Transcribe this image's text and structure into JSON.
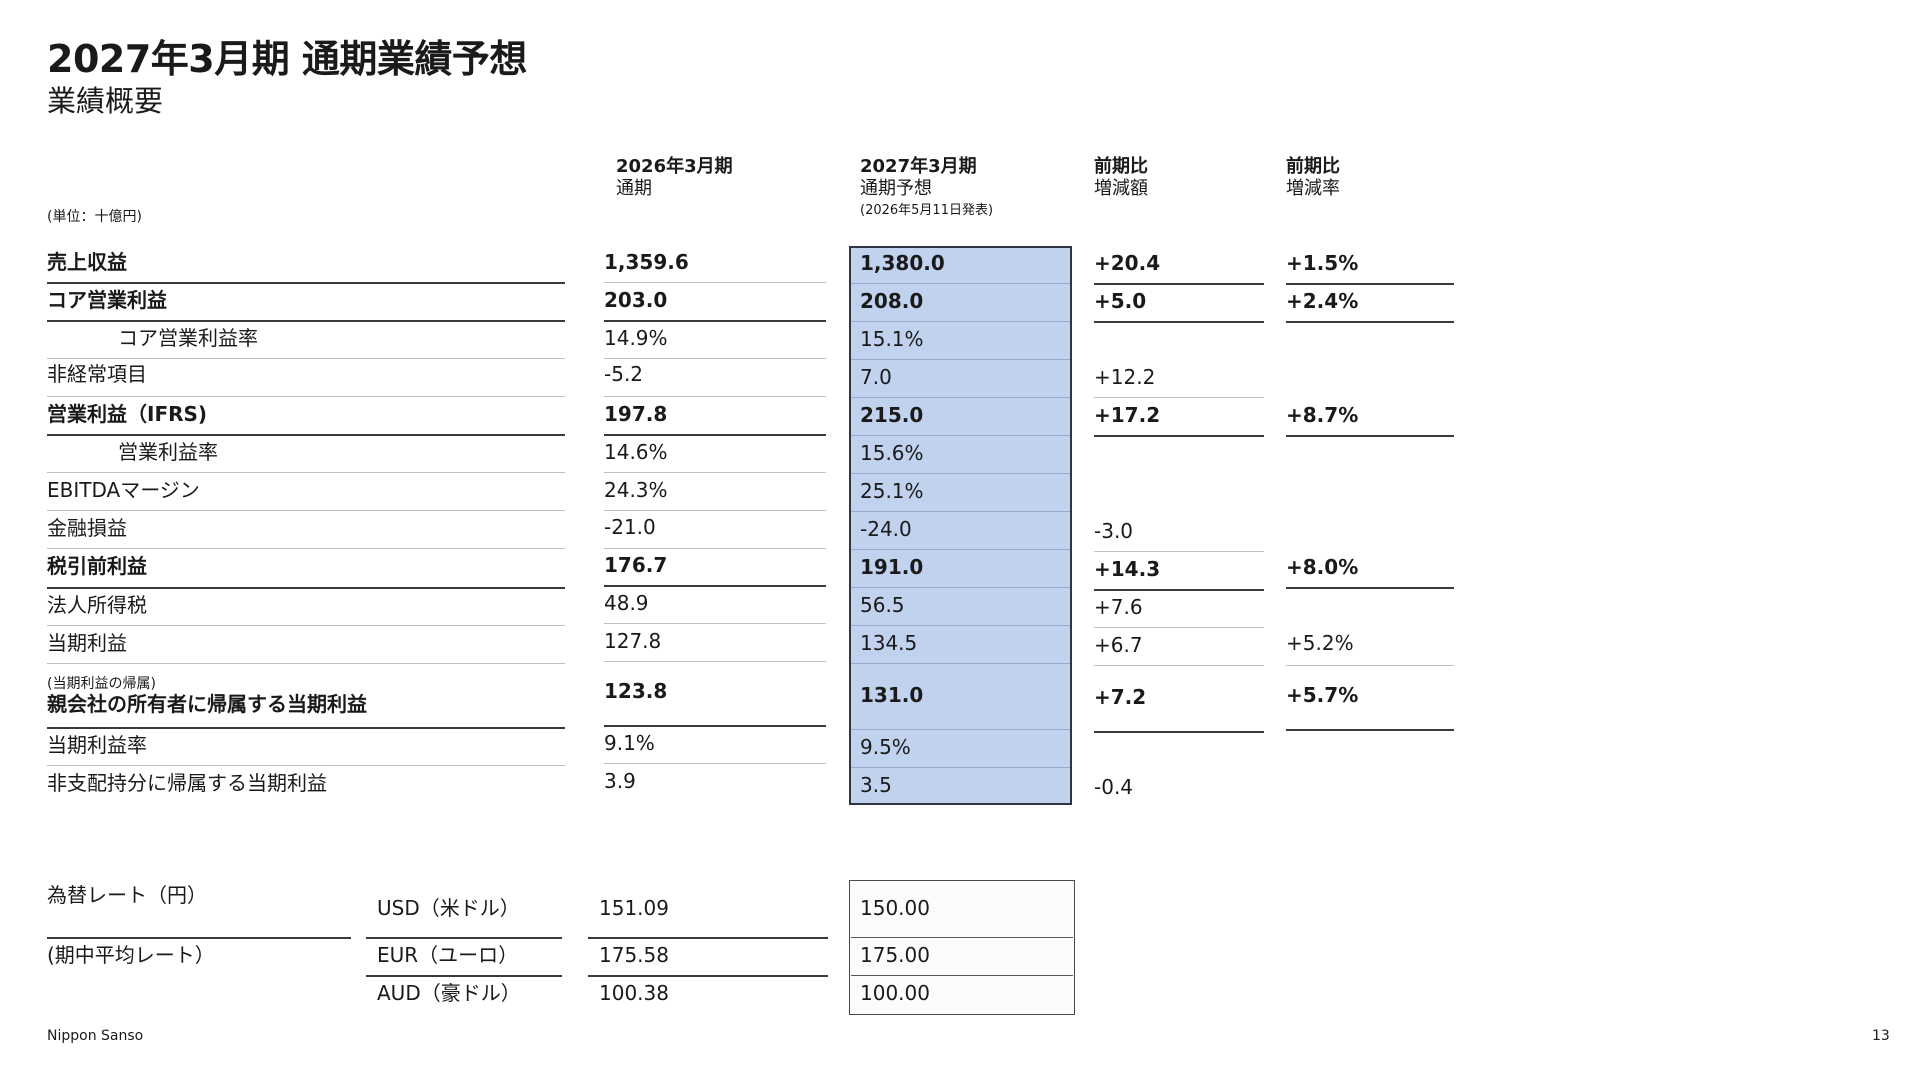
{
  "title": "2027年3月期 通期業績予想",
  "subtitle": "業績概要",
  "unit_note": "(単位：十億円)",
  "columns": {
    "fy2026": {
      "line1": "2026年3月期",
      "line2": "通期"
    },
    "fy2027": {
      "line1": "2027年3月期",
      "line2": "通期予想",
      "note": "(2026年5月11日発表)"
    },
    "diff": {
      "line1": "前期比",
      "line2": "増減額"
    },
    "rate": {
      "line1": "前期比",
      "line2": "増減率"
    }
  },
  "rows": [
    {
      "label": "売上収益",
      "fy2026": "1,359.6",
      "fy2027": "1,380.0",
      "diff": "+20.4",
      "rate": "+1.5%"
    },
    {
      "label": "コア営業利益",
      "fy2026": "203.0",
      "fy2027": "208.0",
      "diff": "+5.0",
      "rate": "+2.4%"
    },
    {
      "label": "コア営業利益率",
      "fy2026": "14.9%",
      "fy2027": "15.1%",
      "diff": "",
      "rate": ""
    },
    {
      "label": "非経常項目",
      "fy2026": "-5.2",
      "fy2027": "7.0",
      "diff": "+12.2",
      "rate": ""
    },
    {
      "label": "営業利益（IFRS)",
      "fy2026": "197.8",
      "fy2027": "215.0",
      "diff": "+17.2",
      "rate": "+8.7%"
    },
    {
      "label": "営業利益率",
      "fy2026": "14.6%",
      "fy2027": "15.6%",
      "diff": "",
      "rate": ""
    },
    {
      "label": "EBITDAマージン",
      "fy2026": "24.3%",
      "fy2027": "25.1%",
      "diff": "",
      "rate": ""
    },
    {
      "label": "金融損益",
      "fy2026": "-21.0",
      "fy2027": "-24.0",
      "diff": "-3.0",
      "rate": ""
    },
    {
      "label": "税引前利益",
      "fy2026": "176.7",
      "fy2027": "191.0",
      "diff": "+14.3",
      "rate": "+8.0%"
    },
    {
      "label": "法人所得税",
      "fy2026": "48.9",
      "fy2027": "56.5",
      "diff": "+7.6",
      "rate": ""
    },
    {
      "label": "当期利益",
      "fy2026": "127.8",
      "fy2027": "134.5",
      "diff": "+6.7",
      "rate": "+5.2%"
    },
    {
      "label_small": "(当期利益の帰属)",
      "label": "親会社の所有者に帰属する当期利益",
      "fy2026": "123.8",
      "fy2027": "131.0",
      "diff": "+7.2",
      "rate": "+5.7%"
    },
    {
      "label": "当期利益率",
      "fy2026": "9.1%",
      "fy2027": "9.5%",
      "diff": "",
      "rate": ""
    },
    {
      "label": "非支配持分に帰属する当期利益",
      "fy2026": "3.9",
      "fy2027": "3.5",
      "diff": "-0.4",
      "rate": ""
    }
  ],
  "fx": {
    "label1": "為替レート（円）",
    "label2": "(期中平均レート）",
    "rows": [
      {
        "currency": "USD（米ドル）",
        "fy2026": "151.09",
        "fy2027": "150.00"
      },
      {
        "currency": "EUR（ユーロ）",
        "fy2026": "175.58",
        "fy2027": "175.00"
      },
      {
        "currency": "AUD（豪ドル）",
        "fy2026": "100.38",
        "fy2027": "100.00"
      }
    ]
  },
  "footer": "Nippon Sanso",
  "page_number": "13"
}
